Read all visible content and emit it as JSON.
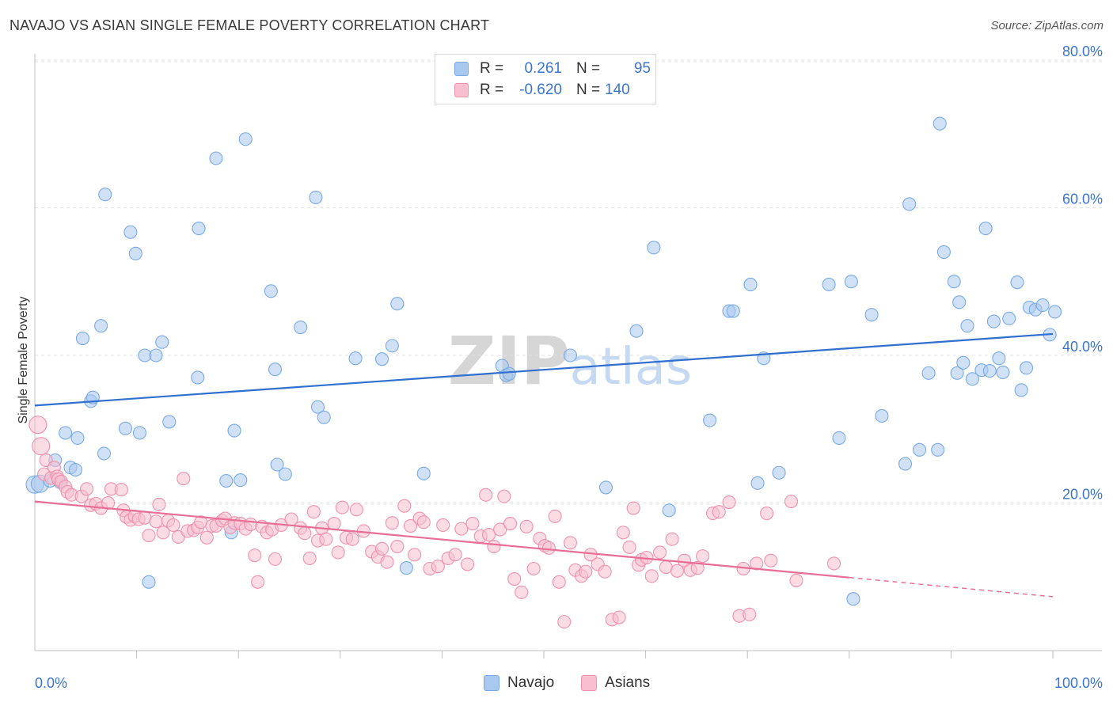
{
  "title": "NAVAJO VS ASIAN SINGLE FEMALE POVERTY CORRELATION CHART",
  "source": "Source: ZipAtlas.com",
  "watermark": "ZIPatlas",
  "legend": {
    "rows": [
      {
        "r_label": "R =",
        "r_value": "0.261",
        "n_label": "N =",
        "n_value": "95",
        "color": "#a9c8ef",
        "border": "#7aaae6"
      },
      {
        "r_label": "R =",
        "r_value": "-0.620",
        "n_label": "N =",
        "n_value": "140",
        "color": "#f7bfd0",
        "border": "#ef92ae"
      }
    ]
  },
  "bottom_legend": [
    {
      "label": "Navajo",
      "color": "#a9c8ef",
      "border": "#7aaae6"
    },
    {
      "label": "Asians",
      "color": "#f7bfd0",
      "border": "#ef92ae"
    }
  ],
  "chart_data": {
    "type": "scatter",
    "title": "NAVAJO VS ASIAN SINGLE FEMALE POVERTY CORRELATION CHART",
    "xlabel": "",
    "ylabel": "Single Female Poverty",
    "xlim": [
      0,
      100
    ],
    "ylim": [
      0,
      83
    ],
    "x_tick_labels": [
      "0.0%",
      "100.0%"
    ],
    "y_ticks": [
      20,
      40,
      60,
      80
    ],
    "y_tick_labels": [
      "20.0%",
      "40.0%",
      "60.0%",
      "80.0%"
    ],
    "grid": true,
    "series": [
      {
        "name": "Navajo",
        "color": "#7aaae6",
        "fill": "#a9c8ef",
        "trend": {
          "x": [
            0,
            100
          ],
          "y": [
            33.2,
            42.9
          ],
          "style": "solid"
        },
        "points": [
          [
            0,
            22.5
          ],
          [
            0.5,
            22.6
          ],
          [
            1.5,
            23
          ],
          [
            2,
            25.8
          ],
          [
            2.5,
            22.8
          ],
          [
            3,
            29.5
          ],
          [
            3.5,
            24.8
          ],
          [
            4,
            24.5
          ],
          [
            4.2,
            28.8
          ],
          [
            4.7,
            42.3
          ],
          [
            5.5,
            33.8
          ],
          [
            5.7,
            34.3
          ],
          [
            6.5,
            44
          ],
          [
            6.8,
            26.7
          ],
          [
            6.9,
            61.8
          ],
          [
            8.9,
            30.1
          ],
          [
            9.4,
            56.7
          ],
          [
            9.9,
            53.8
          ],
          [
            10.3,
            29.5
          ],
          [
            10.8,
            40
          ],
          [
            11.2,
            9.3
          ],
          [
            11.9,
            40
          ],
          [
            12.5,
            41.8
          ],
          [
            13.2,
            31
          ],
          [
            16,
            37
          ],
          [
            16.1,
            57.2
          ],
          [
            17.8,
            66.7
          ],
          [
            18.8,
            23
          ],
          [
            19.3,
            16
          ],
          [
            19.6,
            29.8
          ],
          [
            20.2,
            23.1
          ],
          [
            20.7,
            69.3
          ],
          [
            23.2,
            48.7
          ],
          [
            23.6,
            38.1
          ],
          [
            23.8,
            25.2
          ],
          [
            24.6,
            23.9
          ],
          [
            26.1,
            43.8
          ],
          [
            27.6,
            61.4
          ],
          [
            27.8,
            33
          ],
          [
            28.4,
            31.6
          ],
          [
            31.5,
            39.6
          ],
          [
            34.1,
            39.5
          ],
          [
            35.1,
            41.3
          ],
          [
            35.6,
            47
          ],
          [
            36.5,
            11.2
          ],
          [
            38.2,
            24
          ],
          [
            45.9,
            38.6
          ],
          [
            46.3,
            37.3
          ],
          [
            46.6,
            37.5
          ],
          [
            52.6,
            40
          ],
          [
            56.1,
            22.1
          ],
          [
            59.1,
            43.3
          ],
          [
            60.8,
            54.6
          ],
          [
            62.3,
            19
          ],
          [
            66.3,
            31.2
          ],
          [
            68.2,
            46
          ],
          [
            68.6,
            46
          ],
          [
            70.3,
            49.6
          ],
          [
            71,
            22.7
          ],
          [
            71.6,
            39.6
          ],
          [
            73.1,
            24.1
          ],
          [
            78,
            49.6
          ],
          [
            79,
            28.8
          ],
          [
            80.2,
            50
          ],
          [
            80.4,
            7
          ],
          [
            82.2,
            45.5
          ],
          [
            83.2,
            31.8
          ],
          [
            85.5,
            25.3
          ],
          [
            85.9,
            60.5
          ],
          [
            86.9,
            27.2
          ],
          [
            87.8,
            37.6
          ],
          [
            88.7,
            27.2
          ],
          [
            88.9,
            71.4
          ],
          [
            89.3,
            54
          ],
          [
            90.3,
            50
          ],
          [
            90.6,
            37.6
          ],
          [
            90.8,
            47.2
          ],
          [
            91.2,
            39
          ],
          [
            91.6,
            44
          ],
          [
            92.1,
            36.8
          ],
          [
            93,
            38
          ],
          [
            93.4,
            57.2
          ],
          [
            93.8,
            37.9
          ],
          [
            94.2,
            44.6
          ],
          [
            94.7,
            39.6
          ],
          [
            95.1,
            37.7
          ],
          [
            95.7,
            45
          ],
          [
            96.5,
            49.9
          ],
          [
            96.9,
            35.3
          ],
          [
            97.4,
            38.3
          ],
          [
            97.7,
            46.5
          ],
          [
            98.3,
            46.2
          ],
          [
            99,
            46.8
          ],
          [
            99.7,
            42.8
          ],
          [
            100.2,
            45.9
          ]
        ]
      },
      {
        "name": "Asians",
        "color": "#ef92ae",
        "fill": "#f7bfd0",
        "trend": {
          "x": [
            0,
            80
          ],
          "y": [
            20.2,
            9.9
          ],
          "style": "solid",
          "dashed_extension_to": [
            100,
            7.3
          ]
        },
        "points": [
          [
            0.3,
            30.6
          ],
          [
            0.6,
            27.7
          ],
          [
            0.9,
            23.9
          ],
          [
            1.1,
            25.8
          ],
          [
            1.6,
            23.4
          ],
          [
            1.9,
            24.8
          ],
          [
            2.2,
            23.6
          ],
          [
            2.3,
            23.2
          ],
          [
            2.6,
            22.9
          ],
          [
            3,
            22.2
          ],
          [
            3.2,
            21.5
          ],
          [
            3.6,
            21.1
          ],
          [
            4.6,
            20.9
          ],
          [
            5.1,
            21.9
          ],
          [
            5.5,
            19.7
          ],
          [
            6,
            19.9
          ],
          [
            6.5,
            19.3
          ],
          [
            7.2,
            20
          ],
          [
            7.5,
            21.9
          ],
          [
            8.5,
            21.8
          ],
          [
            8.7,
            19
          ],
          [
            9,
            18.1
          ],
          [
            9.4,
            17.7
          ],
          [
            9.8,
            18.2
          ],
          [
            10.2,
            17.8
          ],
          [
            10.8,
            18
          ],
          [
            11.2,
            15.6
          ],
          [
            11.9,
            17.5
          ],
          [
            12.2,
            19.8
          ],
          [
            12.6,
            16
          ],
          [
            13.1,
            17.6
          ],
          [
            13.6,
            17
          ],
          [
            14.1,
            15.4
          ],
          [
            14.6,
            23.3
          ],
          [
            15,
            16.2
          ],
          [
            15.6,
            16.3
          ],
          [
            16,
            16.7
          ],
          [
            16.3,
            17.4
          ],
          [
            16.9,
            15.3
          ],
          [
            17.4,
            16.9
          ],
          [
            17.8,
            16.9
          ],
          [
            18.4,
            17.6
          ],
          [
            18.7,
            17.9
          ],
          [
            19.2,
            16.7
          ],
          [
            19.6,
            17.3
          ],
          [
            20.2,
            17.2
          ],
          [
            20.7,
            16.5
          ],
          [
            21.2,
            17.1
          ],
          [
            21.6,
            12.9
          ],
          [
            21.9,
            9.3
          ],
          [
            22.3,
            16.8
          ],
          [
            22.8,
            16
          ],
          [
            23.3,
            16.4
          ],
          [
            23.6,
            12.4
          ],
          [
            24.2,
            17
          ],
          [
            25.2,
            17.8
          ],
          [
            26.1,
            16.6
          ],
          [
            26.5,
            15.9
          ],
          [
            27,
            12.5
          ],
          [
            27.4,
            18.8
          ],
          [
            27.8,
            14.9
          ],
          [
            28.2,
            16.6
          ],
          [
            28.6,
            15.1
          ],
          [
            29.4,
            17.2
          ],
          [
            29.8,
            13.3
          ],
          [
            30.2,
            19.4
          ],
          [
            30.6,
            15.3
          ],
          [
            31.2,
            15.1
          ],
          [
            31.6,
            19.1
          ],
          [
            32.3,
            16.2
          ],
          [
            33.1,
            13.4
          ],
          [
            33.7,
            12.7
          ],
          [
            34.1,
            13.8
          ],
          [
            34.6,
            12
          ],
          [
            35.1,
            17.3
          ],
          [
            35.6,
            14.1
          ],
          [
            36.3,
            19.6
          ],
          [
            36.9,
            16.9
          ],
          [
            37.3,
            13
          ],
          [
            37.8,
            17.9
          ],
          [
            38.2,
            17.4
          ],
          [
            38.8,
            11.1
          ],
          [
            39.6,
            11.4
          ],
          [
            40.1,
            17
          ],
          [
            40.6,
            12.5
          ],
          [
            41.3,
            13
          ],
          [
            41.9,
            16.5
          ],
          [
            42.5,
            11.7
          ],
          [
            43,
            17.2
          ],
          [
            43.8,
            15.5
          ],
          [
            44.3,
            21.1
          ],
          [
            44.6,
            15.7
          ],
          [
            45.1,
            14.1
          ],
          [
            45.7,
            16.4
          ],
          [
            46.1,
            20.9
          ],
          [
            46.7,
            17.2
          ],
          [
            47.1,
            9.7
          ],
          [
            47.8,
            7.9
          ],
          [
            48.3,
            16.8
          ],
          [
            49,
            11.1
          ],
          [
            49.6,
            15.2
          ],
          [
            50.1,
            14.2
          ],
          [
            50.5,
            13.9
          ],
          [
            51.1,
            18.2
          ],
          [
            51.5,
            9.3
          ],
          [
            52,
            3.9
          ],
          [
            52.6,
            14.6
          ],
          [
            53.1,
            10.9
          ],
          [
            53.7,
            10.1
          ],
          [
            54.1,
            10.7
          ],
          [
            54.6,
            13
          ],
          [
            55.3,
            11.7
          ],
          [
            56,
            10.7
          ],
          [
            56.7,
            4.2
          ],
          [
            57.4,
            4.5
          ],
          [
            57.8,
            16
          ],
          [
            58.4,
            14
          ],
          [
            58.8,
            19.3
          ],
          [
            59.3,
            11.6
          ],
          [
            59.6,
            12.3
          ],
          [
            60.1,
            12.6
          ],
          [
            60.6,
            10.1
          ],
          [
            61.4,
            13.3
          ],
          [
            62,
            11.3
          ],
          [
            62.6,
            15.1
          ],
          [
            63.1,
            10.8
          ],
          [
            63.8,
            12.2
          ],
          [
            64.4,
            10.9
          ],
          [
            65.1,
            11.2
          ],
          [
            65.6,
            12.8
          ],
          [
            66.6,
            18.6
          ],
          [
            67.2,
            18.8
          ],
          [
            68.2,
            20.1
          ],
          [
            69.2,
            4.7
          ],
          [
            69.6,
            11.1
          ],
          [
            70.2,
            4.9
          ],
          [
            70.9,
            11.8
          ],
          [
            71.9,
            18.6
          ],
          [
            72.3,
            12.2
          ],
          [
            74.3,
            20.2
          ],
          [
            74.8,
            9.5
          ],
          [
            78.5,
            11.8
          ]
        ]
      }
    ]
  }
}
